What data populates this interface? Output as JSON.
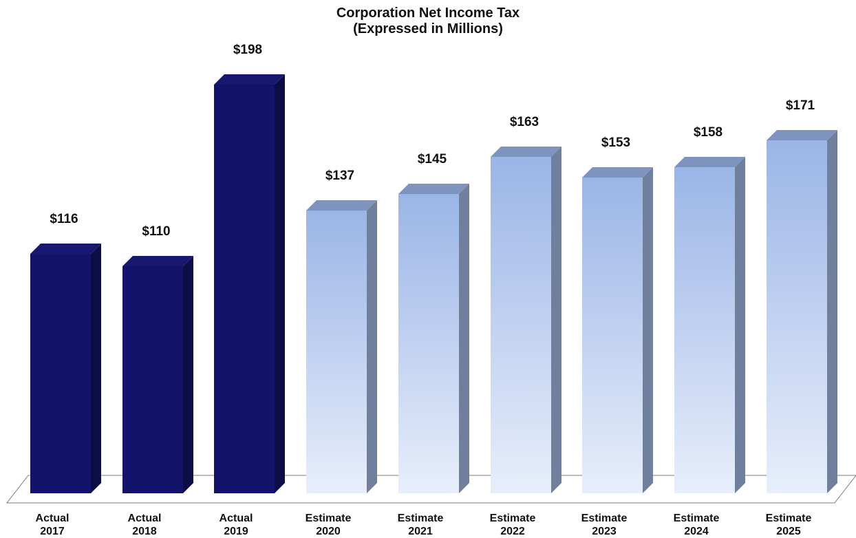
{
  "chart_data": {
    "type": "bar",
    "title_line1": "Corporation Net Income Tax",
    "title_line2": "(Expressed in Millions)",
    "xlabel": "",
    "ylabel": "",
    "categories": [
      [
        "Actual",
        "2017"
      ],
      [
        "Actual",
        "2018"
      ],
      [
        "Actual",
        "2019"
      ],
      [
        "Estimate",
        "2020"
      ],
      [
        "Estimate",
        "2021"
      ],
      [
        "Estimate",
        "2022"
      ],
      [
        "Estimate",
        "2023"
      ],
      [
        "Estimate",
        "2024"
      ],
      [
        "Estimate",
        "2025"
      ]
    ],
    "values": [
      116,
      110,
      198,
      137,
      145,
      163,
      153,
      158,
      171
    ],
    "value_labels": [
      "$116",
      "$110",
      "$198",
      "$137",
      "$145",
      "$163",
      "$153",
      "$158",
      "$171"
    ],
    "bar_kind": [
      "actual",
      "actual",
      "actual",
      "estimate",
      "estimate",
      "estimate",
      "estimate",
      "estimate",
      "estimate"
    ],
    "ylim": [
      0,
      200
    ],
    "grid": false,
    "legend": "none",
    "style": "3d-columns",
    "colors": {
      "actual_front": "#13136b",
      "actual_side": "#0d0d45",
      "actual_top": "#181870",
      "estimate_top_gradient": "#9ab5e6",
      "estimate_bottom_gradient": "#e8eefb",
      "estimate_side": "#6f7f9c",
      "estimate_roof": "#7e93bd",
      "floor_line": "#7a7a7a"
    }
  }
}
